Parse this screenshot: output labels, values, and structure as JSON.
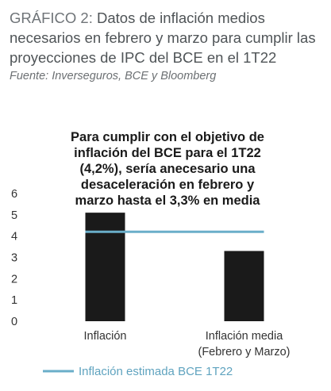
{
  "header": {
    "prefix": "GRÁFICO 2:",
    "title": "Datos de inflación medios necesarios en febrero y marzo para cumplir las proyecciones de IPC del BCE en el 1T22",
    "source": "Fuente: Inverseguros, BCE y Bloomberg"
  },
  "chart_data": {
    "type": "bar",
    "annotation": [
      "Para cumplir con el objetivo de",
      "inflación del BCE para el 1T22",
      "(4,2%), sería anecesario una",
      "desaceleración en febrero y",
      "marzo hasta el 3,3% en media"
    ],
    "categories": [
      [
        "Inflación"
      ],
      [
        "Inflación media",
        "(Febrero y Marzo)"
      ]
    ],
    "values": [
      5.1,
      3.3
    ],
    "ylim": [
      0,
      6
    ],
    "yticks": [
      "0",
      "1",
      "2",
      "3",
      "4",
      "5",
      "6"
    ],
    "reference_line": {
      "name": "Inflación estimada BCE 1T22",
      "value": 4.2
    },
    "legend_position": "bottom",
    "grid": false,
    "colors": {
      "bar": "#1a1a1a",
      "line": "#6aaec9"
    }
  }
}
